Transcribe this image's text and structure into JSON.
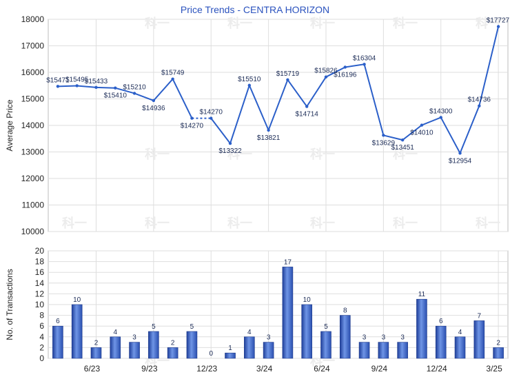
{
  "chart_data": [
    {
      "type": "line",
      "title": "Price Trends - CENTRA HORIZON",
      "ylabel": "Average Price",
      "ylim": [
        10000,
        18000
      ],
      "yticks": [
        "10000",
        "11000",
        "12000",
        "13000",
        "14000",
        "15000",
        "16000",
        "17000",
        "18000"
      ],
      "series": [
        {
          "values": [
            15471,
            15495,
            15433,
            15410,
            15210,
            14936,
            15749,
            14270,
            14270,
            13322,
            15510,
            13821,
            15719,
            14714,
            15826,
            16196,
            16304,
            13629,
            13451,
            14010,
            14300,
            12954,
            14736,
            17727
          ],
          "labels": [
            "$15471",
            "$15495",
            "$15433",
            "$15410",
            "$15210",
            "$14936",
            "$15749",
            "$14270",
            "$14270",
            "$13322",
            "$15510",
            "$13821",
            "$15719",
            "$14714",
            "$15826",
            "$16196",
            "$16304",
            "$13629",
            "$13451",
            "$14010",
            "$14300",
            "$12954",
            "$14736",
            "$17727"
          ]
        }
      ],
      "gap_after_index": 7,
      "color": "#2b5fc9",
      "grid": true
    },
    {
      "type": "bar",
      "ylabel": "No. of Transactions",
      "ylim": [
        0,
        20
      ],
      "yticks": [
        "0",
        "2",
        "4",
        "6",
        "8",
        "10",
        "12",
        "14",
        "16",
        "18",
        "20"
      ],
      "xticks": [
        "6/23",
        "9/23",
        "12/23",
        "3/24",
        "6/24",
        "9/24",
        "12/24",
        "3/25"
      ],
      "values": [
        6,
        10,
        2,
        4,
        3,
        5,
        2,
        5,
        0,
        1,
        4,
        3,
        17,
        10,
        5,
        8,
        3,
        3,
        3,
        11,
        6,
        4,
        7,
        2
      ],
      "color": "#3a66c8",
      "grid": true
    }
  ],
  "watermark": "科一"
}
